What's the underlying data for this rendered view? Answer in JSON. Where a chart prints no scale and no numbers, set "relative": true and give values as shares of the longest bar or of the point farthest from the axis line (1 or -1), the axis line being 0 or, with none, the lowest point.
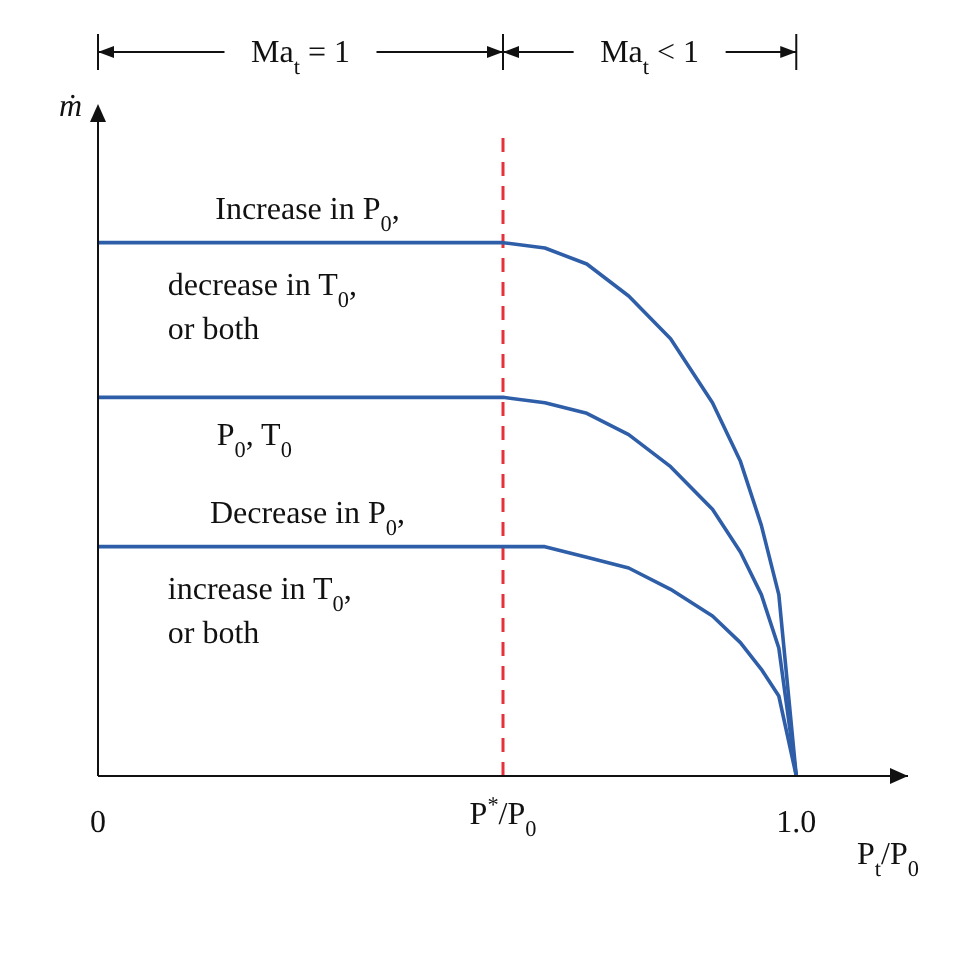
{
  "chart_data": {
    "type": "line",
    "relative": true,
    "xlabel": "P$_{t}$/P$_{0}$",
    "ylabel": "ṁ",
    "x": [
      0,
      0.58,
      0.64,
      0.7,
      0.76,
      0.82,
      0.88,
      0.92,
      0.95,
      0.975,
      1.0
    ],
    "xlim": [
      0,
      1.16
    ],
    "xticks": [
      {
        "value": 0,
        "label": "0"
      },
      {
        "value": 1.0,
        "label": "1.0"
      }
    ],
    "series": [
      {
        "color": "#2f5ea8",
        "values": [
          1,
          1,
          0.99,
          0.96,
          0.9,
          0.82,
          0.7,
          0.59,
          0.47,
          0.34,
          0
        ]
      },
      {
        "color": "#2f5ea8",
        "values": [
          0.71,
          0.71,
          0.7,
          0.68,
          0.64,
          0.58,
          0.5,
          0.42,
          0.34,
          0.24,
          0
        ]
      },
      {
        "color": "#2f5ea8",
        "values": [
          0.43,
          0.43,
          0.43,
          0.41,
          0.39,
          0.35,
          0.3,
          0.25,
          0.2,
          0.15,
          0
        ]
      }
    ],
    "ref_lines": [
      {
        "axis": "x",
        "value": 0.58,
        "color": "#e8303a",
        "line_style": "dashed",
        "label": "P$^{*}$/P$_{0}$"
      }
    ],
    "annotations": [
      "Ma$_{t}$ = 1",
      "Ma$_{t}$ < 1",
      "Increase in P$_{0}$,",
      "decrease in T$_{0}$,",
      "or both",
      "P$_{0}$, T$_{0}$",
      "Decrease in P$_{0}$,",
      "increase in T$_{0}$,",
      "or both"
    ],
    "grid": false,
    "legend": false,
    "marker": "none",
    "line_style": "solid"
  }
}
